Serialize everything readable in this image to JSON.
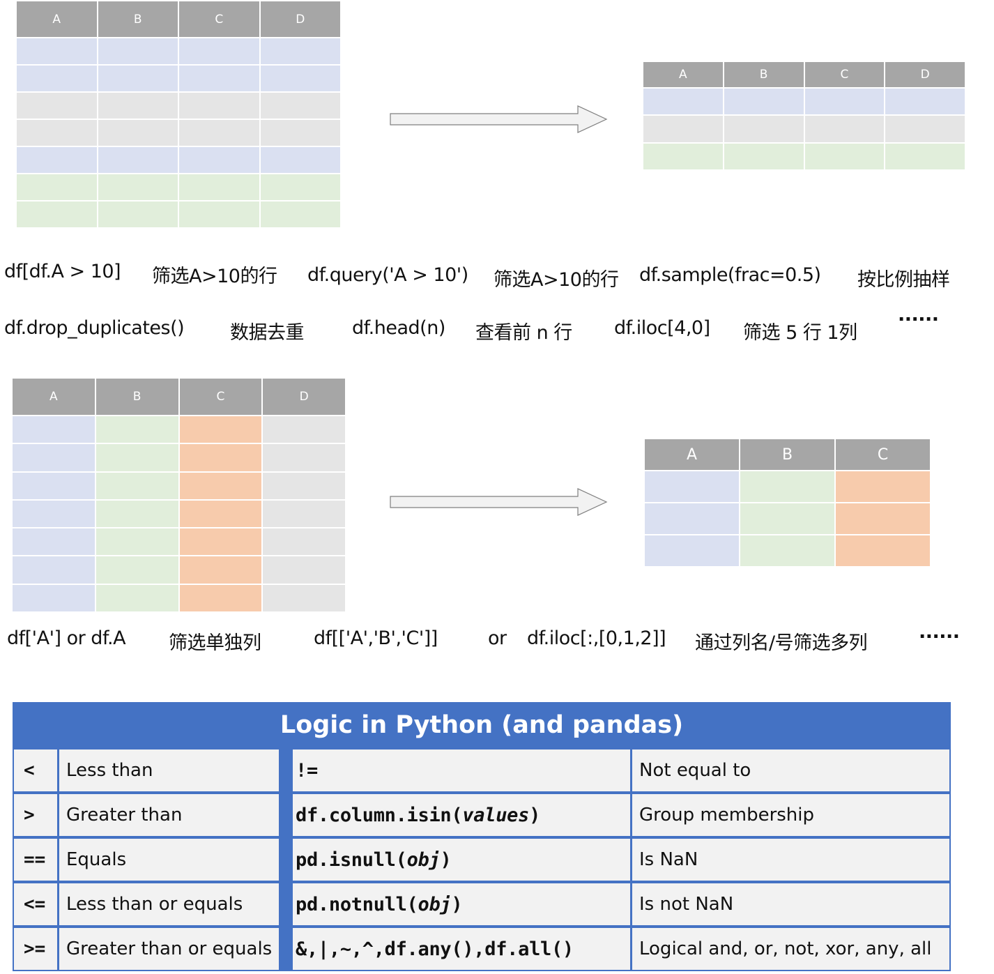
{
  "table1": {
    "headers": [
      "A",
      "B",
      "C",
      "D"
    ],
    "row_colors": [
      "blue",
      "blue",
      "gray",
      "gray",
      "blue",
      "green",
      "green"
    ]
  },
  "table2": {
    "headers": [
      "A",
      "B",
      "C",
      "D"
    ],
    "row_colors": [
      "blue",
      "gray",
      "green"
    ]
  },
  "table3": {
    "headers": [
      "A",
      "B",
      "C",
      "D"
    ],
    "column_colors": [
      "blue",
      "green",
      "orange",
      "gray"
    ],
    "row_count": 7
  },
  "table4": {
    "headers": [
      "A",
      "B",
      "C"
    ],
    "column_colors": [
      "blue",
      "green",
      "orange"
    ],
    "row_count": 3
  },
  "colors": {
    "header": "#a6a6a6",
    "blue": "#dae0f1",
    "gray": "#e5e5e5",
    "green": "#e1eedb",
    "orange": "#f7cbac",
    "logic_blue": "#4472c4"
  },
  "row_captions": {
    "line1": [
      "df[df.A > 10]",
      "筛选A>10的行",
      "df.query('A > 10')",
      "筛选A>10的行",
      "df.sample(frac=0.5)",
      "按比例抽样"
    ],
    "line2": [
      "df.drop_duplicates()",
      "数据去重",
      "df.head(n)",
      "查看前 n 行",
      "df.iloc[4,0]",
      "筛选 5 行 1列",
      "······"
    ]
  },
  "column_captions": [
    "df['A'] or df.A",
    "筛选单独列",
    "df[['A','B','C']]",
    "or",
    "df.iloc[:,[0,1,2]]",
    "通过列名/号筛选多列",
    "······"
  ],
  "logic": {
    "title": "Logic in Python (and pandas)",
    "left": [
      {
        "symbol": "<",
        "meaning": "Less than"
      },
      {
        "symbol": ">",
        "meaning": "Greater than"
      },
      {
        "symbol": "==",
        "meaning": "Equals"
      },
      {
        "symbol": "<=",
        "meaning": "Less than or equals"
      },
      {
        "symbol": ">=",
        "meaning": "Greater than or equals"
      }
    ],
    "right": [
      {
        "code_prefix": "!=",
        "code_arg": "",
        "code_suffix": "",
        "meaning": "Not equal to"
      },
      {
        "code_prefix": "df.column.isin(",
        "code_arg": "values",
        "code_suffix": ")",
        "meaning": "Group membership"
      },
      {
        "code_prefix": "pd.isnull(",
        "code_arg": "obj",
        "code_suffix": ")",
        "meaning": "Is NaN"
      },
      {
        "code_prefix": "pd.notnull(",
        "code_arg": "obj",
        "code_suffix": ")",
        "meaning": "Is not NaN"
      },
      {
        "code_prefix": "&,|,~,^,df.any(),df.all()",
        "code_arg": "",
        "code_suffix": "",
        "meaning": "Logical and, or, not, xor, any, all"
      }
    ]
  }
}
